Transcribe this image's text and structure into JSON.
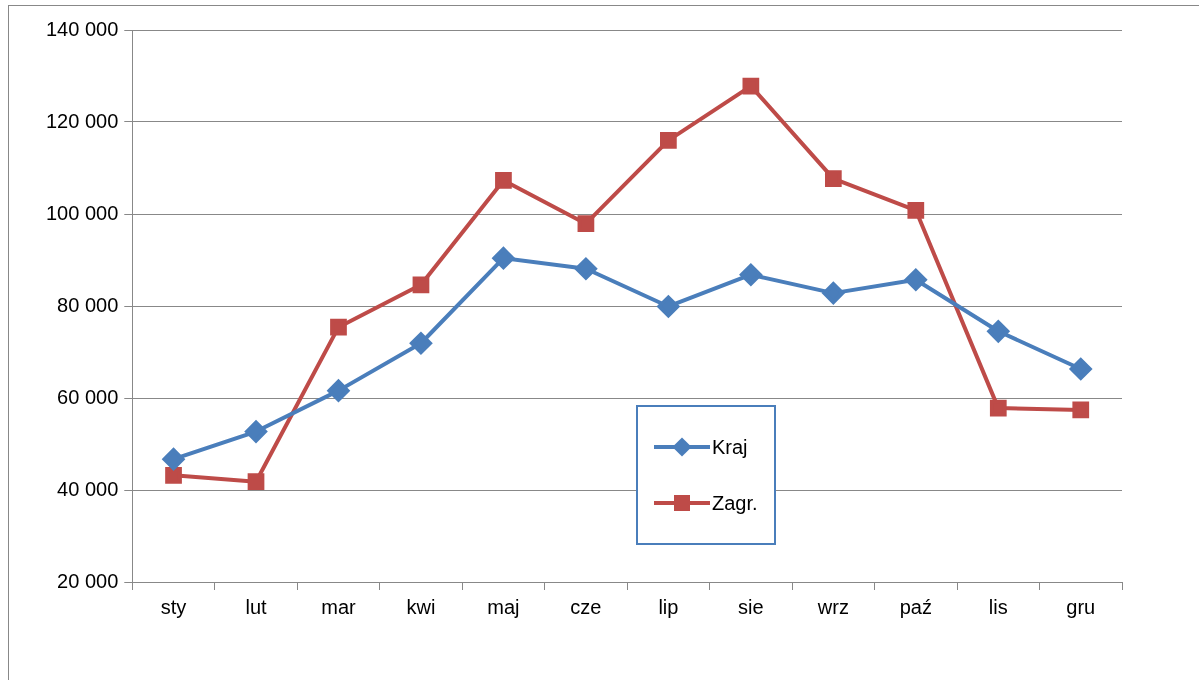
{
  "chart_data": {
    "type": "line",
    "categories": [
      "sty",
      "lut",
      "mar",
      "kwi",
      "maj",
      "cze",
      "lip",
      "sie",
      "wrz",
      "paź",
      "lis",
      "gru"
    ],
    "series": [
      {
        "name": "Kraj",
        "color": "#4a7ebb",
        "marker": "diamond",
        "values": [
          46700,
          52700,
          61600,
          71900,
          90400,
          88100,
          79900,
          86800,
          82800,
          85700,
          74500,
          66300
        ]
      },
      {
        "name": "Zagr.",
        "color": "#be4b48",
        "marker": "square",
        "values": [
          43200,
          41800,
          75400,
          84600,
          107300,
          97900,
          116000,
          127800,
          107700,
          100800,
          57800,
          57400
        ]
      }
    ],
    "ylim": [
      20000,
      140000
    ],
    "yticks": [
      {
        "value": 20000,
        "label": "20 000"
      },
      {
        "value": 40000,
        "label": "40 000"
      },
      {
        "value": 60000,
        "label": "60 000"
      },
      {
        "value": 80000,
        "label": "80 000"
      },
      {
        "value": 100000,
        "label": "100 000"
      },
      {
        "value": 120000,
        "label": "120 000"
      },
      {
        "value": 140000,
        "label": "140 000"
      }
    ],
    "grid": "y",
    "legend": "bottom",
    "line_style": "solid"
  }
}
